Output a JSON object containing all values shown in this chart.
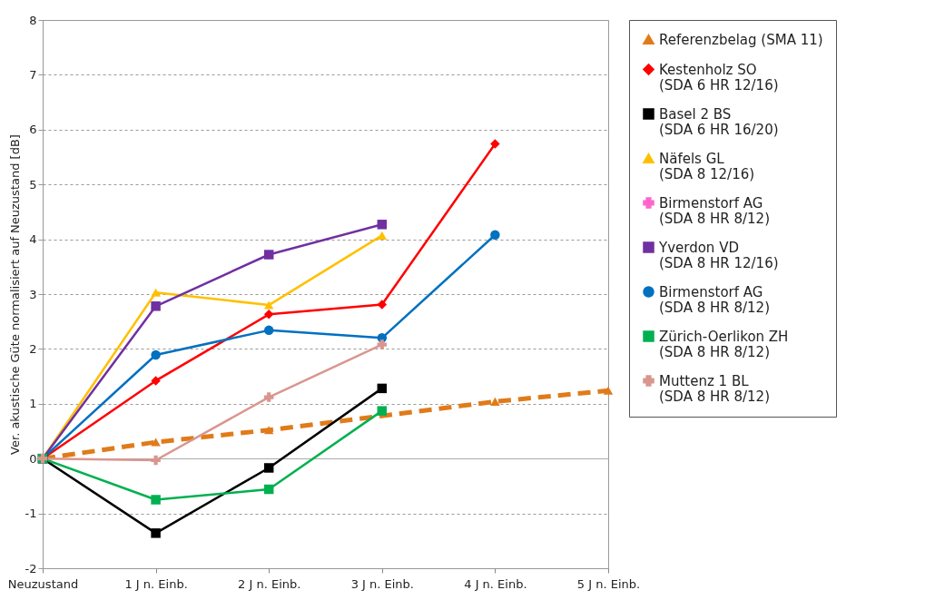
{
  "chart_data": {
    "type": "line",
    "ylabel": "Ver. akustische Güte normalisiert auf Neuzustand [dB]",
    "categories": [
      "Neuzustand",
      "1 J n. Einb.",
      "2 J n. Einb.",
      "3 J n. Einb.",
      "4 J n. Einb.",
      "5 J n. Einb."
    ],
    "ylim": [
      -2,
      8
    ],
    "yticks": [
      -2,
      -1,
      0,
      1,
      2,
      3,
      4,
      5,
      6,
      7,
      8
    ],
    "grid": "y",
    "legend": "right",
    "series": [
      {
        "name": "Referenzbelag (SMA 11)",
        "color": "#e07b1a",
        "marker": "triangle",
        "line_style": "dashed",
        "values": [
          0,
          0.3,
          0.52,
          null,
          1.04,
          1.24
        ]
      },
      {
        "name": "Kestenholz SO (SDA 6 HR 12/16)",
        "color": "#ff0000",
        "marker": "diamond",
        "values": [
          0,
          1.42,
          2.63,
          2.81,
          5.74,
          null
        ]
      },
      {
        "name": "Basel 2 BS (SDA 6 HR 16/20)",
        "color": "#000000",
        "marker": "square",
        "values": [
          0,
          -1.36,
          -0.17,
          1.28,
          null,
          null
        ]
      },
      {
        "name": "Näfels GL (SDA 8 12/16)",
        "color": "#ffc000",
        "marker": "triangle",
        "values": [
          0,
          3.03,
          2.8,
          4.07,
          null,
          null
        ]
      },
      {
        "name": "Birmenstorf AG (SDA 8 HR 8/12)",
        "color": "#ff66cc",
        "marker": "cross",
        "values": [
          null,
          null,
          null,
          null,
          null,
          null
        ]
      },
      {
        "name": "Yverdon VD (SDA 8 HR 12/16)",
        "color": "#7030a0",
        "marker": "square",
        "values": [
          0,
          2.78,
          3.72,
          4.27,
          null,
          null
        ]
      },
      {
        "name": "Birmenstorf AG (SDA 8 HR 8/12)",
        "color": "#0070c0",
        "marker": "circle",
        "values": [
          0,
          1.89,
          2.34,
          2.2,
          4.08,
          null
        ]
      },
      {
        "name": "Zürich-Oerlikon ZH (SDA 8 HR 8/12)",
        "color": "#00b050",
        "marker": "square",
        "values": [
          0,
          -0.75,
          -0.56,
          0.87,
          null,
          null
        ]
      },
      {
        "name": "Muttenz 1 BL (SDA 8 HR 8/12)",
        "color": "#d9968f",
        "marker": "cross",
        "values": [
          0,
          -0.03,
          1.12,
          2.08,
          null,
          null
        ]
      }
    ]
  }
}
